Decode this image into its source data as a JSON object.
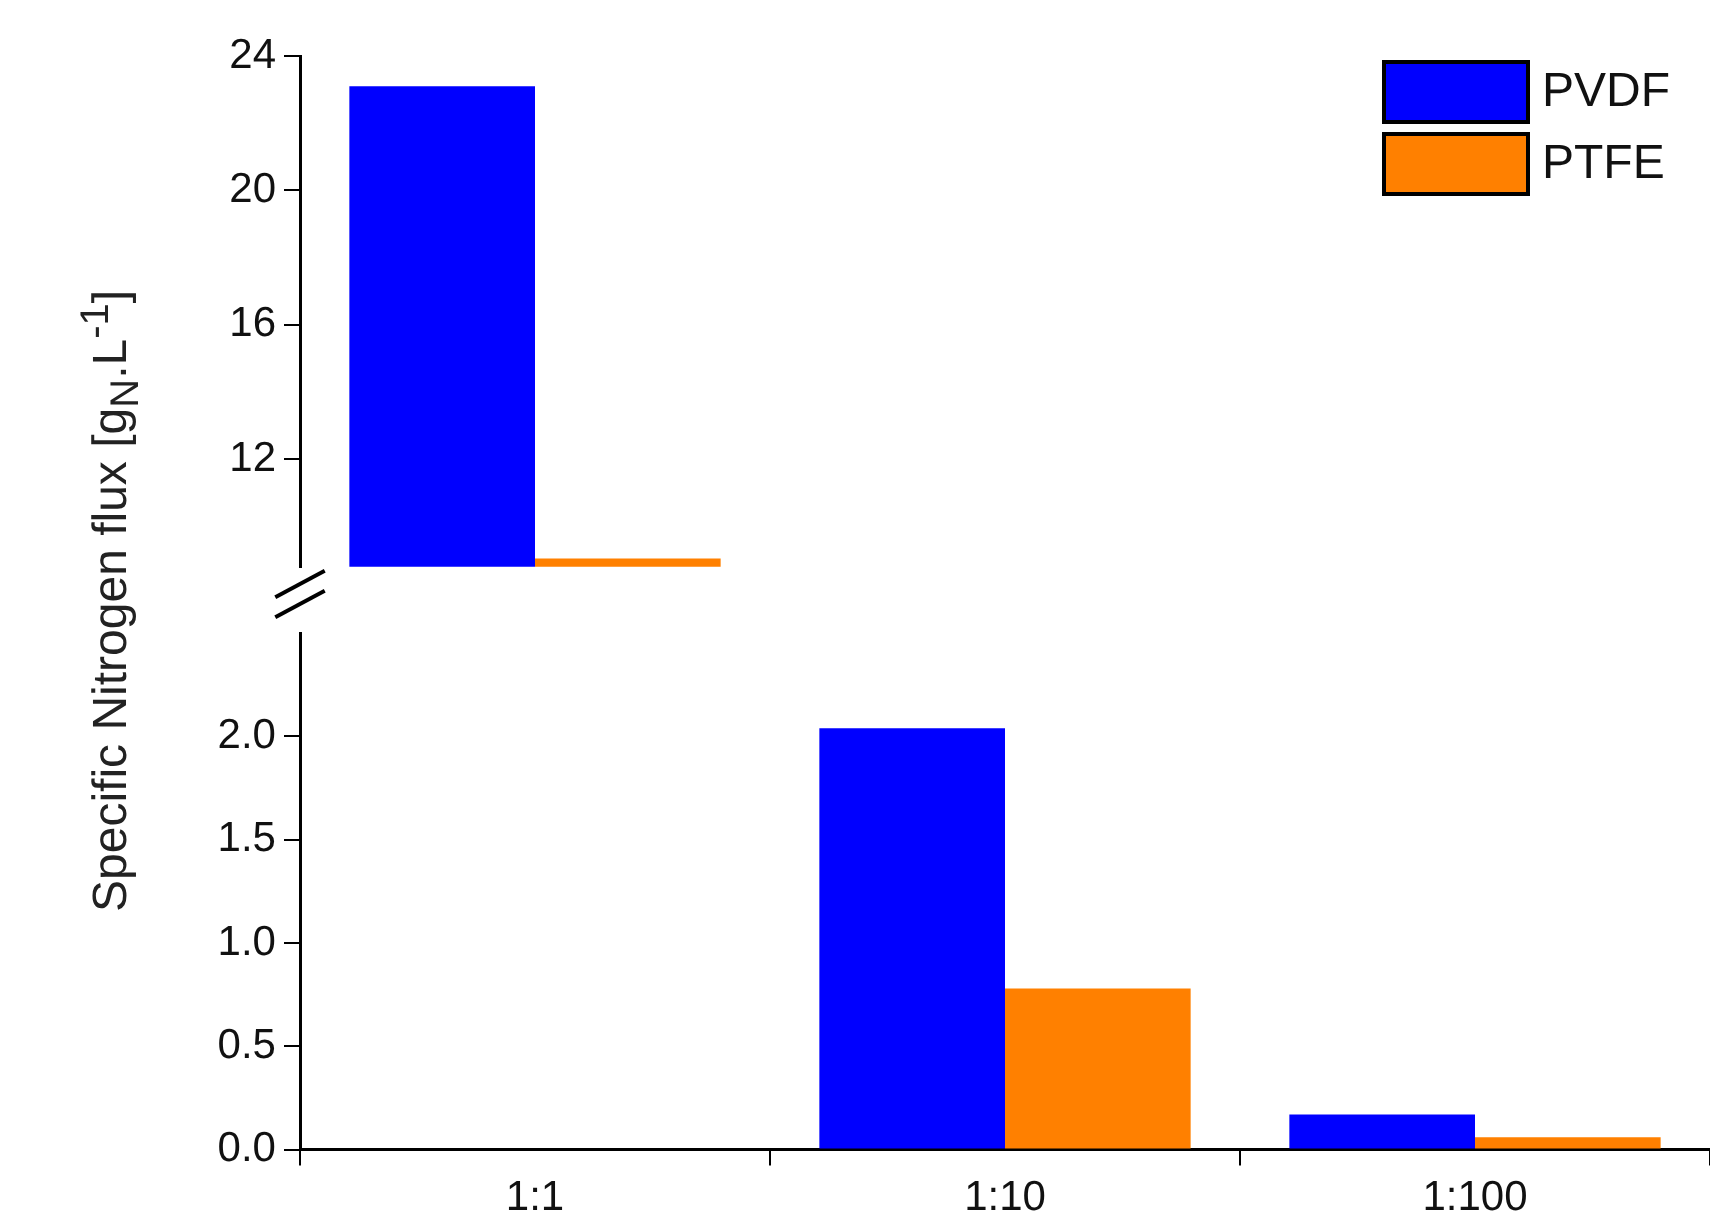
{
  "chart_data": [
    {
      "type": "bar",
      "ylabel": "Specific Nitrogen flux [g$_{N}$.L$^{-1}$]",
      "categories": [
        null
      ],
      "ylim": [
        8.8,
        24
      ],
      "yticks": [
        12,
        16,
        20,
        24
      ],
      "tick_labels": "y",
      "grid": false,
      "legend": "top right",
      "series": [
        {
          "name": "PVDF",
          "color": "#0000ff",
          "values": [
            23.1
          ]
        },
        {
          "name": "PTFE",
          "color": "#ff8000",
          "values": [
            9.05
          ]
        }
      ]
    },
    {
      "type": "bar",
      "categories": [
        "1:1",
        "1:10",
        "1:100"
      ],
      "ylim": [
        0,
        2.5
      ],
      "yticks": [
        {
          "value": 0,
          "label": "0.0"
        },
        {
          "value": 0.5,
          "label": "0.5"
        },
        {
          "value": 1,
          "label": "1.0"
        },
        {
          "value": 1.5,
          "label": "1.5"
        },
        {
          "value": 2,
          "label": "2.0"
        }
      ],
      "grid": false,
      "series": [
        {
          "color": "#0000ff",
          "values": [
            null,
            2.04,
            0.17
          ]
        },
        {
          "color": "#ff8000",
          "values": [
            null,
            0.78,
            0.06
          ]
        }
      ]
    }
  ]
}
